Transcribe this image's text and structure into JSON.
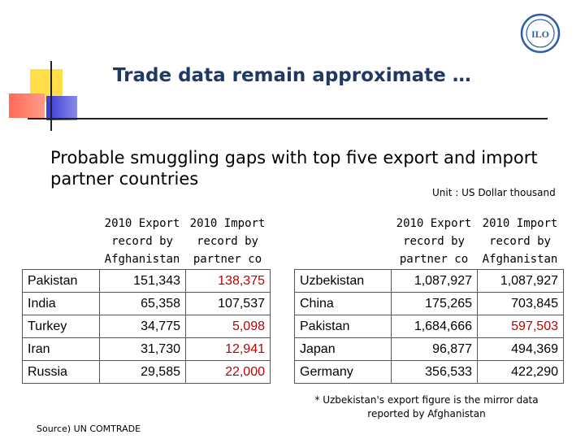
{
  "title": "Trade data remain approximate …",
  "subtitle": "Probable smuggling gaps with top five export and import partner countries",
  "unit": "Unit : US Dollar thousand",
  "logo_text": "ILO",
  "left_table": {
    "headers": [
      "2010 Export\nrecord by\nAfghanistan",
      "2010 Import\nrecord by\npartner co"
    ],
    "rows": [
      {
        "country": "Pakistan",
        "v1": "151,343",
        "v2": "138,375",
        "v2_red": true
      },
      {
        "country": "India",
        "v1": "65,358",
        "v2": "107,537",
        "v2_red": false
      },
      {
        "country": "Turkey",
        "v1": "34,775",
        "v2": "5,098",
        "v2_red": true
      },
      {
        "country": "Iran",
        "v1": "31,730",
        "v2": "12,941",
        "v2_red": true
      },
      {
        "country": "Russia",
        "v1": "29,585",
        "v2": "22,000",
        "v2_red": true
      }
    ]
  },
  "right_table": {
    "headers": [
      "2010 Export\nrecord by\npartner co",
      "2010 Import\nrecord by\nAfghanistan"
    ],
    "rows": [
      {
        "country": "Uzbekistan",
        "v1": "1,087,927",
        "v2": "1,087,927",
        "v2_red": false
      },
      {
        "country": "China",
        "v1": "175,265",
        "v2": "703,845",
        "v2_red": false
      },
      {
        "country": "Pakistan",
        "v1": "1,684,666",
        "v2": "597,503",
        "v2_red": true
      },
      {
        "country": "Japan",
        "v1": "96,877",
        "v2": "494,369",
        "v2_red": false
      },
      {
        "country": "Germany",
        "v1": "356,533",
        "v2": "422,290",
        "v2_red": false
      }
    ]
  },
  "footnote": "* Uzbekistan's export figure is the mirror data reported by Afghanistan",
  "source": "Source) UN COMTRADE",
  "colors": {
    "title": "#1f3864",
    "highlight": "#c00000"
  }
}
